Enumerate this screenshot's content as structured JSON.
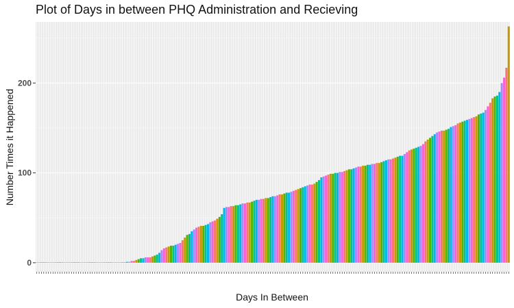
{
  "chart_data": {
    "type": "bar",
    "title": "Plot of Days in between PHQ Administration and Recieving",
    "xlabel": "Days In Between",
    "ylabel": "Number Times it Happened",
    "ylim": [
      -10,
      268
    ],
    "yticks": [
      0,
      100,
      200
    ],
    "grid": true,
    "legend": "none",
    "palette": [
      "#F8766D",
      "#C49A00",
      "#53B400",
      "#00C094",
      "#00B6EB",
      "#A58AFF",
      "#FB61D7"
    ],
    "values": [
      0,
      0,
      0,
      0,
      0,
      0,
      0,
      0,
      0,
      0,
      0,
      0,
      0,
      0,
      0,
      0,
      0,
      0,
      0,
      0,
      0,
      0,
      0,
      0,
      0,
      0,
      0,
      0,
      0,
      0,
      0,
      0,
      0,
      0,
      0,
      0,
      0,
      0,
      0,
      1,
      1,
      2,
      2,
      3,
      4,
      5,
      5,
      6,
      6,
      6,
      7,
      8,
      9,
      11,
      14,
      16,
      17,
      18,
      19,
      19,
      20,
      21,
      22,
      25,
      28,
      31,
      32,
      35,
      37,
      39,
      40,
      41,
      41,
      42,
      43,
      45,
      46,
      47,
      49,
      51,
      54,
      61,
      62,
      62,
      63,
      63,
      64,
      64,
      65,
      66,
      66,
      67,
      67,
      68,
      69,
      70,
      70,
      71,
      71,
      72,
      72,
      73,
      74,
      74,
      75,
      76,
      76,
      77,
      78,
      78,
      79,
      80,
      81,
      82,
      83,
      84,
      85,
      86,
      87,
      87,
      88,
      90,
      92,
      95,
      96,
      97,
      98,
      99,
      99,
      100,
      100,
      101,
      101,
      102,
      103,
      104,
      104,
      105,
      106,
      107,
      107,
      108,
      108,
      109,
      109,
      110,
      110,
      111,
      111,
      112,
      113,
      114,
      115,
      115,
      116,
      117,
      118,
      119,
      119,
      121,
      123,
      125,
      126,
      127,
      128,
      129,
      130,
      132,
      135,
      137,
      139,
      141,
      143,
      145,
      146,
      147,
      147,
      148,
      149,
      151,
      152,
      153,
      155,
      156,
      157,
      158,
      159,
      160,
      161,
      162,
      163,
      165,
      166,
      167,
      170,
      174,
      178,
      183,
      185,
      186,
      190,
      200,
      206,
      217,
      263
    ]
  }
}
